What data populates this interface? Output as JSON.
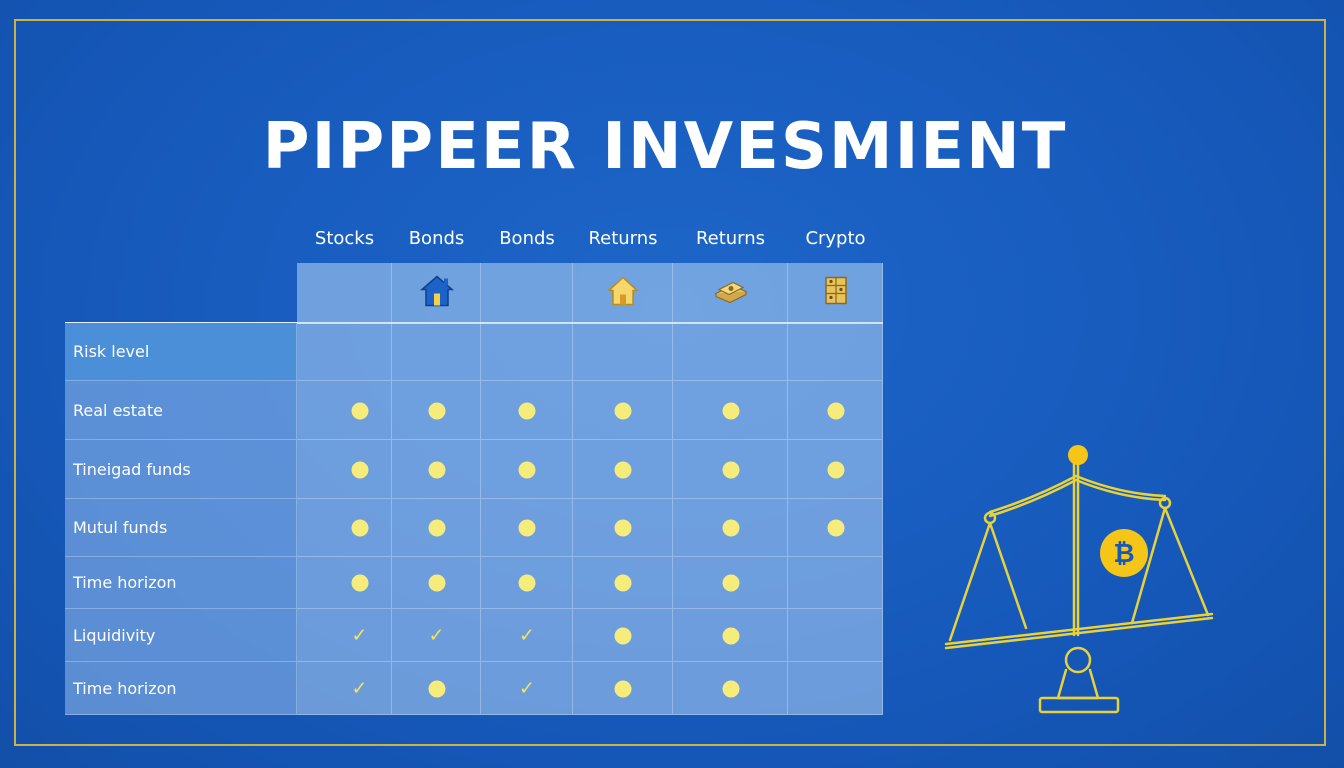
{
  "title": "PIPPEER INVESMIENT",
  "columns": [
    {
      "label": "Stocks",
      "icon": null
    },
    {
      "label": "Bonds",
      "icon": "house-blue-icon"
    },
    {
      "label": "Bonds",
      "icon": null
    },
    {
      "label": "Returns",
      "icon": "house-yellow-icon"
    },
    {
      "label": "Returns",
      "icon": "money-stack-icon"
    },
    {
      "label": "Crypto",
      "icon": "gold-bars-icon"
    }
  ],
  "rows": [
    {
      "label": "Risk level",
      "cells": [
        "",
        "",
        "",
        "",
        "",
        ""
      ]
    },
    {
      "label": "Real estate",
      "cells": [
        "dot",
        "dot",
        "dot",
        "dot",
        "dot",
        "dot"
      ]
    },
    {
      "label": "Tineigad funds",
      "cells": [
        "dot",
        "dot",
        "dot",
        "dot",
        "dot",
        "dot"
      ]
    },
    {
      "label": "Mutul funds",
      "cells": [
        "dot",
        "dot",
        "dot",
        "dot",
        "dot",
        "dot"
      ]
    },
    {
      "label": "Time horizon",
      "cells": [
        "dot",
        "dot",
        "dot",
        "dot",
        "dot",
        ""
      ]
    },
    {
      "label": "Liquidivity",
      "cells": [
        "check",
        "check",
        "check",
        "dot",
        "dot",
        ""
      ]
    },
    {
      "label": "Time horizon",
      "cells": [
        "check",
        "dot",
        "check",
        "dot",
        "dot",
        ""
      ]
    }
  ],
  "illustration": "balance-scale-bitcoin-icon",
  "colors": {
    "background": "#1659bb",
    "frame": "#c9b246",
    "dot": "#f6ec7c",
    "check": "#f3e45a",
    "scale": "#e8d23c",
    "bitcoin": "#f5c518"
  }
}
